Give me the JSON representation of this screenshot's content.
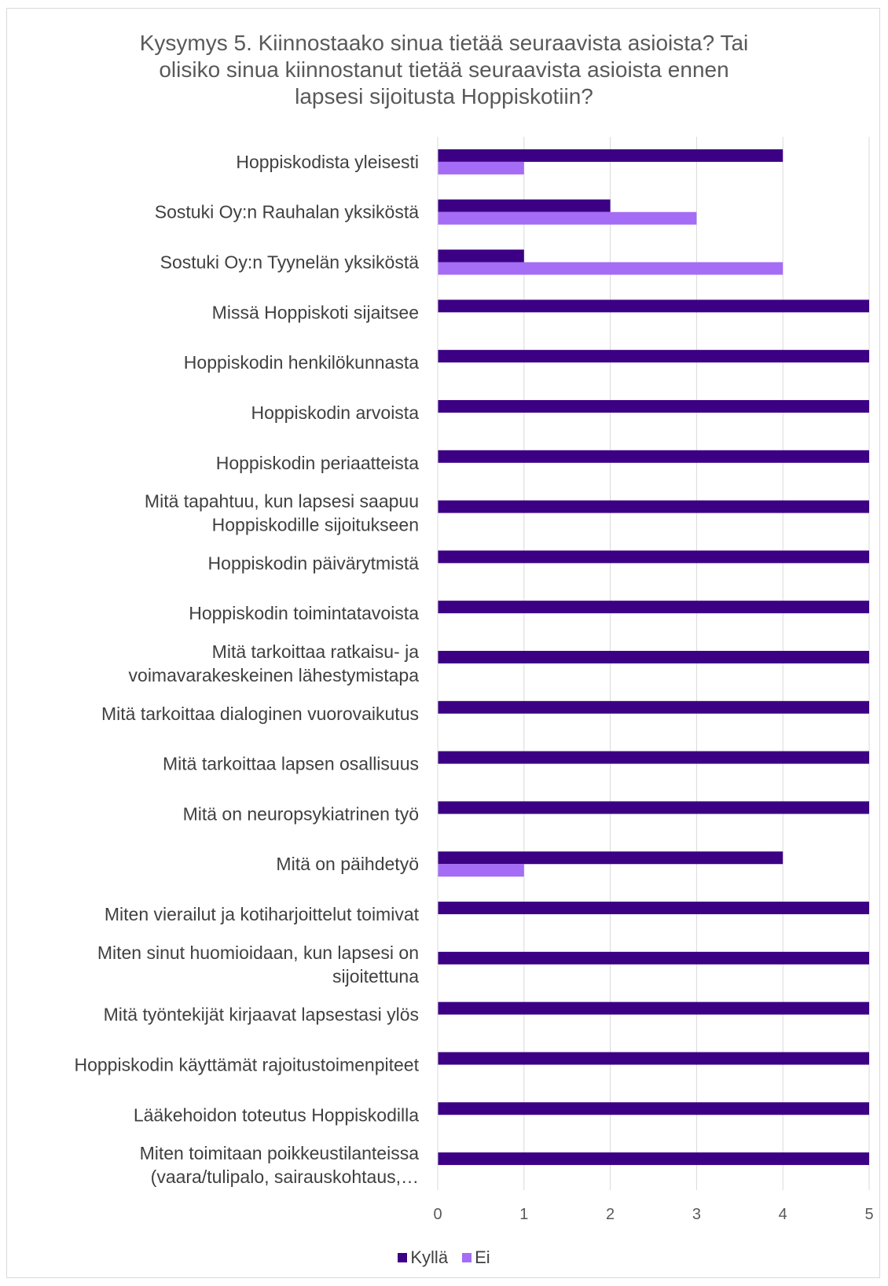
{
  "chart_data": {
    "type": "bar",
    "orientation": "horizontal",
    "title_lines": [
      "Kysymys 5. Kiinnostaako sinua tietää seuraavista asioista? Tai",
      "olisiko sinua kiinnostanut tietää seuraavista asioista ennen",
      "lapsesi sijoitusta Hoppiskotiin?"
    ],
    "categories": [
      [
        "Hoppiskodista yleisesti"
      ],
      [
        "Sostuki Oy:n Rauhalan yksiköstä"
      ],
      [
        "Sostuki Oy:n Tyynelän yksiköstä"
      ],
      [
        "Missä Hoppiskoti sijaitsee"
      ],
      [
        "Hoppiskodin henkilökunnasta"
      ],
      [
        "Hoppiskodin arvoista"
      ],
      [
        "Hoppiskodin periaatteista"
      ],
      [
        "Mitä tapahtuu, kun lapsesi saapuu",
        "Hoppiskodille sijoitukseen"
      ],
      [
        "Hoppiskodin päivärytmistä"
      ],
      [
        "Hoppiskodin toimintatavoista"
      ],
      [
        "Mitä tarkoittaa ratkaisu- ja",
        "voimavarakeskeinen lähestymistapa"
      ],
      [
        "Mitä tarkoittaa dialoginen vuorovaikutus"
      ],
      [
        "Mitä tarkoittaa lapsen osallisuus"
      ],
      [
        "Mitä on neuropsykiatrinen työ"
      ],
      [
        "Mitä on päihdetyö"
      ],
      [
        "Miten vierailut ja kotiharjoittelut toimivat"
      ],
      [
        "Miten sinut huomioidaan, kun lapsesi on",
        "sijoitettuna"
      ],
      [
        "Mitä työntekijät kirjaavat lapsestasi ylös"
      ],
      [
        "Hoppiskodin käyttämät rajoitustoimenpiteet"
      ],
      [
        "Lääkehoidon toteutus Hoppiskodilla"
      ],
      [
        "Miten toimitaan poikkeustilanteissa",
        "(vaara/tulipalo, sairauskohtaus,…"
      ]
    ],
    "series": [
      {
        "name": "Kyllä",
        "color": "#3c0084",
        "values": [
          4,
          2,
          1,
          5,
          5,
          5,
          5,
          5,
          5,
          5,
          5,
          5,
          5,
          5,
          4,
          5,
          5,
          5,
          5,
          5,
          5
        ]
      },
      {
        "name": "Ei",
        "color": "#a56cf5",
        "values": [
          1,
          3,
          4,
          0,
          0,
          0,
          0,
          0,
          0,
          0,
          0,
          0,
          0,
          0,
          1,
          0,
          0,
          0,
          0,
          0,
          0
        ]
      }
    ],
    "xlim": [
      0,
      5
    ],
    "xticks": [
      "0",
      "1",
      "2",
      "3",
      "4",
      "5"
    ],
    "grid": "vertical",
    "legend": "bottom"
  }
}
